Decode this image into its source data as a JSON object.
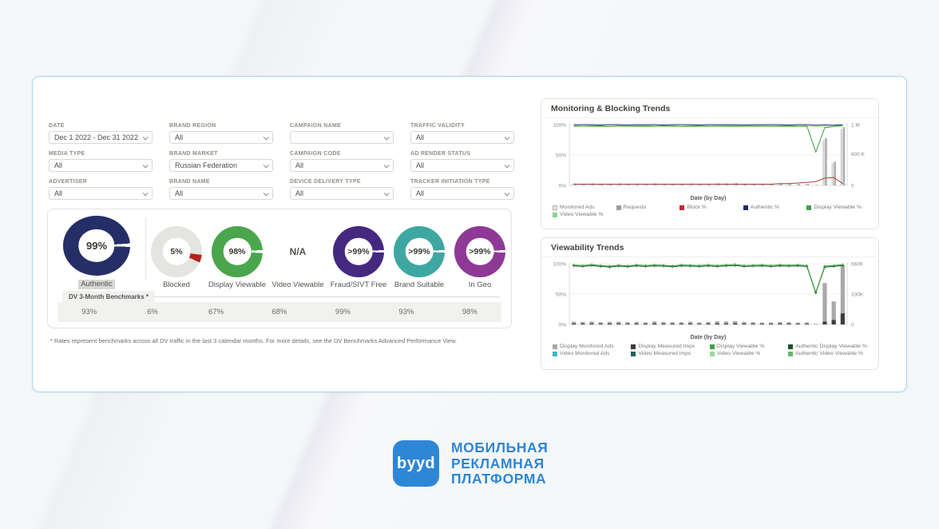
{
  "filters": [
    {
      "label": "Date",
      "value": "Dec 1 2022 - Dec 31 2022"
    },
    {
      "label": "Brand Region",
      "value": "All"
    },
    {
      "label": "Campaign Name",
      "value": ""
    },
    {
      "label": "Traffic Validity",
      "value": "All"
    },
    {
      "label": "Media Type",
      "value": "All"
    },
    {
      "label": "Brand Market",
      "value": "Russian Federation"
    },
    {
      "label": "Campaign Code",
      "value": "All"
    },
    {
      "label": "Ad Render Status",
      "value": "All"
    },
    {
      "label": "Advertiser",
      "value": "All"
    },
    {
      "label": "Brand Name",
      "value": "All"
    },
    {
      "label": "Device Delivery Type",
      "value": "All"
    },
    {
      "label": "Tracker Initiation Type",
      "value": "All"
    }
  ],
  "donuts": [
    {
      "label": "Authentic",
      "value": "99%",
      "color": "#252e66",
      "ring_pct": 99,
      "selected": true,
      "large": true
    },
    {
      "label": "Blocked",
      "value": "5%",
      "color": "#e4e4e1",
      "slice_color": "#b5231b",
      "slice_pct": 5
    },
    {
      "label": "Display Viewable",
      "value": "98%",
      "color": "#4aa64c",
      "ring_pct": 98
    },
    {
      "label": "Video Viewable",
      "value": "N/A",
      "na": true
    },
    {
      "label": "Fraud/SIVT Free",
      "value": ">99%",
      "color": "#45297f",
      "ring_pct": 99.5
    },
    {
      "label": "Brand Suitable",
      "value": ">99%",
      "color": "#3fa7a1",
      "ring_pct": 99.5
    },
    {
      "label": "In Geo",
      "value": ">99%",
      "color": "#8e3996",
      "ring_pct": 99.5
    }
  ],
  "benchmarks": {
    "tab": "DV 3-Month Benchmarks *",
    "values": [
      "93%",
      "6%",
      "67%",
      "68%",
      "99%",
      "93%",
      "98%"
    ]
  },
  "footnote": "* Rates represent benchmarks across all DV traffic in the last 3 calendar months. For more details, see the DV Benchmarks Advanced Performance View.",
  "chart_data": [
    {
      "type": "bar+line combo",
      "title": "Monitoring & Blocking Trends",
      "xlabel": "Date (by Day)",
      "days": 31,
      "y_left": [
        {
          "t": "100%",
          "v": 100
        },
        {
          "t": "50%",
          "v": 50
        },
        {
          "t": "0%",
          "v": 0
        }
      ],
      "y_right": [
        {
          "t": "1 M",
          "v": 100
        },
        {
          "t": "600 K",
          "v": 52
        },
        {
          "t": "0",
          "v": 0
        }
      ],
      "right_max": 1000,
      "legend_cols": 5,
      "legend": [
        {
          "label": "Monitored Ads",
          "color": "#e3e3e1",
          "border": true
        },
        {
          "label": "Requests",
          "color": "#9c9c9c"
        },
        {
          "label": "Block %",
          "color": "#c0272d"
        },
        {
          "label": "Authentic %",
          "color": "#1d2a66"
        },
        {
          "label": "Display Viewable %",
          "color": "#43a047"
        },
        {
          "label": "Video Viewable %",
          "color": "#8bd48c"
        }
      ],
      "series": [
        {
          "name": "Monitored Ads",
          "type": "bar",
          "axis": "right",
          "color": "#d6d6d4",
          "bw": 2.6,
          "dx": -1.5,
          "values": [
            28,
            26,
            30,
            24,
            26,
            29,
            25,
            27,
            23,
            31,
            26,
            24,
            24,
            28,
            22,
            26,
            32,
            30,
            34,
            26,
            23,
            21,
            20,
            26,
            24,
            20,
            22,
            6,
            745,
            368,
            925
          ]
        },
        {
          "name": "Requests",
          "type": "bar",
          "axis": "right",
          "color": "#adadab",
          "bw": 2.6,
          "dx": 1.5,
          "values": [
            32,
            30,
            34,
            28,
            30,
            33,
            29,
            31,
            27,
            35,
            30,
            28,
            28,
            32,
            26,
            30,
            36,
            34,
            38,
            30,
            27,
            25,
            24,
            30,
            28,
            24,
            26,
            8,
            780,
            390,
            960
          ]
        },
        {
          "name": "Block %",
          "type": "line",
          "axis": "left",
          "color": "#ab4038",
          "values": [
            2,
            2,
            2,
            2,
            2,
            2,
            2,
            2,
            2,
            2,
            2,
            2,
            2,
            2,
            2,
            2,
            2,
            2,
            2,
            2,
            2,
            2,
            2,
            3,
            3,
            4,
            5,
            6,
            12,
            13,
            3
          ]
        },
        {
          "name": "Authentic %",
          "type": "line",
          "axis": "left",
          "color": "#1d2a66",
          "values": [
            100,
            100,
            100,
            99.5,
            100,
            100,
            99.5,
            100,
            100,
            100,
            99.5,
            100,
            100,
            100,
            99.5,
            100,
            100,
            100,
            100,
            99.5,
            100,
            100,
            100,
            100,
            99.5,
            100,
            100,
            99,
            99.5,
            99,
            100
          ]
        },
        {
          "name": "Video Viewable %",
          "type": "line",
          "axis": "left",
          "color": "#8bd48c",
          "values": [
            97,
            97.5,
            97,
            96.5,
            97,
            97.5,
            97,
            97,
            96.5,
            97,
            97.5,
            97,
            97,
            96.5,
            97,
            97,
            97.5,
            97,
            96.5,
            97,
            97,
            97.5,
            97,
            97,
            96.5,
            97,
            97,
            97,
            96.5,
            97,
            97.5
          ]
        },
        {
          "name": "Display Viewable %",
          "type": "line",
          "axis": "left",
          "color": "#3f9f43",
          "values": [
            98,
            97.5,
            98,
            98,
            97,
            98,
            97.5,
            98,
            98,
            97.5,
            98,
            98,
            97,
            98,
            98,
            97.5,
            98,
            98,
            98,
            97.5,
            98,
            98,
            97.5,
            98,
            98,
            97.5,
            98,
            55,
            95,
            97,
            99
          ]
        }
      ]
    },
    {
      "type": "bar+line combo",
      "title": "Viewability Trends",
      "xlabel": "Date (by Day)",
      "days": 31,
      "y_left": [
        {
          "t": "100%",
          "v": 100
        },
        {
          "t": "50%",
          "v": 50
        },
        {
          "t": "0%",
          "v": 0
        }
      ],
      "y_right": [
        {
          "t": "660K",
          "v": 100
        },
        {
          "t": "330K",
          "v": 50
        },
        {
          "t": "0",
          "v": 0
        }
      ],
      "right_max": 660,
      "legend_cols": 4,
      "legend": [
        {
          "label": "Display Monitored Ads",
          "color": "#a8a8a8"
        },
        {
          "label": "Display Measured Imps",
          "color": "#3b3b3b"
        },
        {
          "label": "Display Viewable %",
          "color": "#43a047"
        },
        {
          "label": "Authentic Display Viewable %",
          "color": "#1d5423"
        },
        {
          "label": "Video Monitored Ads",
          "color": "#43b6bf"
        },
        {
          "label": "Video Measured Imps",
          "color": "#22615d"
        },
        {
          "label": "Video Viewable %",
          "color": "#9dd89d"
        },
        {
          "label": "Authentic Video Viewable %",
          "color": "#67b56b"
        }
      ],
      "series": [
        {
          "name": "Display Monitored Ads",
          "type": "bar",
          "axis": "right",
          "color": "#a9a9a7",
          "bw": 5.2,
          "dx": 0,
          "values": [
            30,
            28,
            32,
            25,
            28,
            30,
            26,
            29,
            24,
            33,
            28,
            25,
            26,
            30,
            23,
            28,
            34,
            32,
            36,
            28,
            25,
            22,
            21,
            28,
            26,
            21,
            23,
            5,
            450,
            250,
            640
          ]
        },
        {
          "name": "Display Measured Imps",
          "type": "bar",
          "axis": "right",
          "color": "#3d3d3b",
          "bw": 5.2,
          "dx": 0,
          "values": [
            10,
            9,
            10,
            8,
            9,
            10,
            8,
            9,
            8,
            11,
            9,
            8,
            8,
            10,
            7,
            9,
            11,
            10,
            12,
            9,
            8,
            7,
            7,
            9,
            8,
            7,
            7,
            2,
            30,
            48,
            120
          ]
        },
        {
          "name": "Authentic Display Viewable %",
          "type": "line",
          "axis": "left",
          "color": "#1d5423",
          "marker": true,
          "values": [
            96.5,
            95.5,
            97,
            95.5,
            94.5,
            96,
            95,
            96.5,
            95.5,
            96.5,
            96,
            95,
            96.5,
            96,
            95.5,
            96.5,
            95.5,
            96.5,
            97,
            95.5,
            96,
            96.5,
            95.5,
            96.5,
            96,
            96.5,
            95.5,
            52,
            94.5,
            95.5,
            97
          ]
        },
        {
          "name": "Display Viewable %",
          "type": "line",
          "axis": "left",
          "color": "#3f9f43",
          "marker": true,
          "values": [
            98,
            97,
            98.5,
            97,
            96,
            97.5,
            96.5,
            98,
            97,
            98,
            97.5,
            96.5,
            98,
            97.5,
            97,
            98,
            97,
            98,
            98.5,
            97,
            97.5,
            98,
            97,
            98,
            97.5,
            98,
            97,
            53,
            96,
            97,
            98.5
          ]
        }
      ]
    }
  ],
  "logo": {
    "mark": "byyd",
    "lines": [
      "МОБИЛЬНАЯ",
      "РЕКЛАМНАЯ",
      "ПЛАТФОРМА"
    ],
    "color": "#2e86d6"
  }
}
